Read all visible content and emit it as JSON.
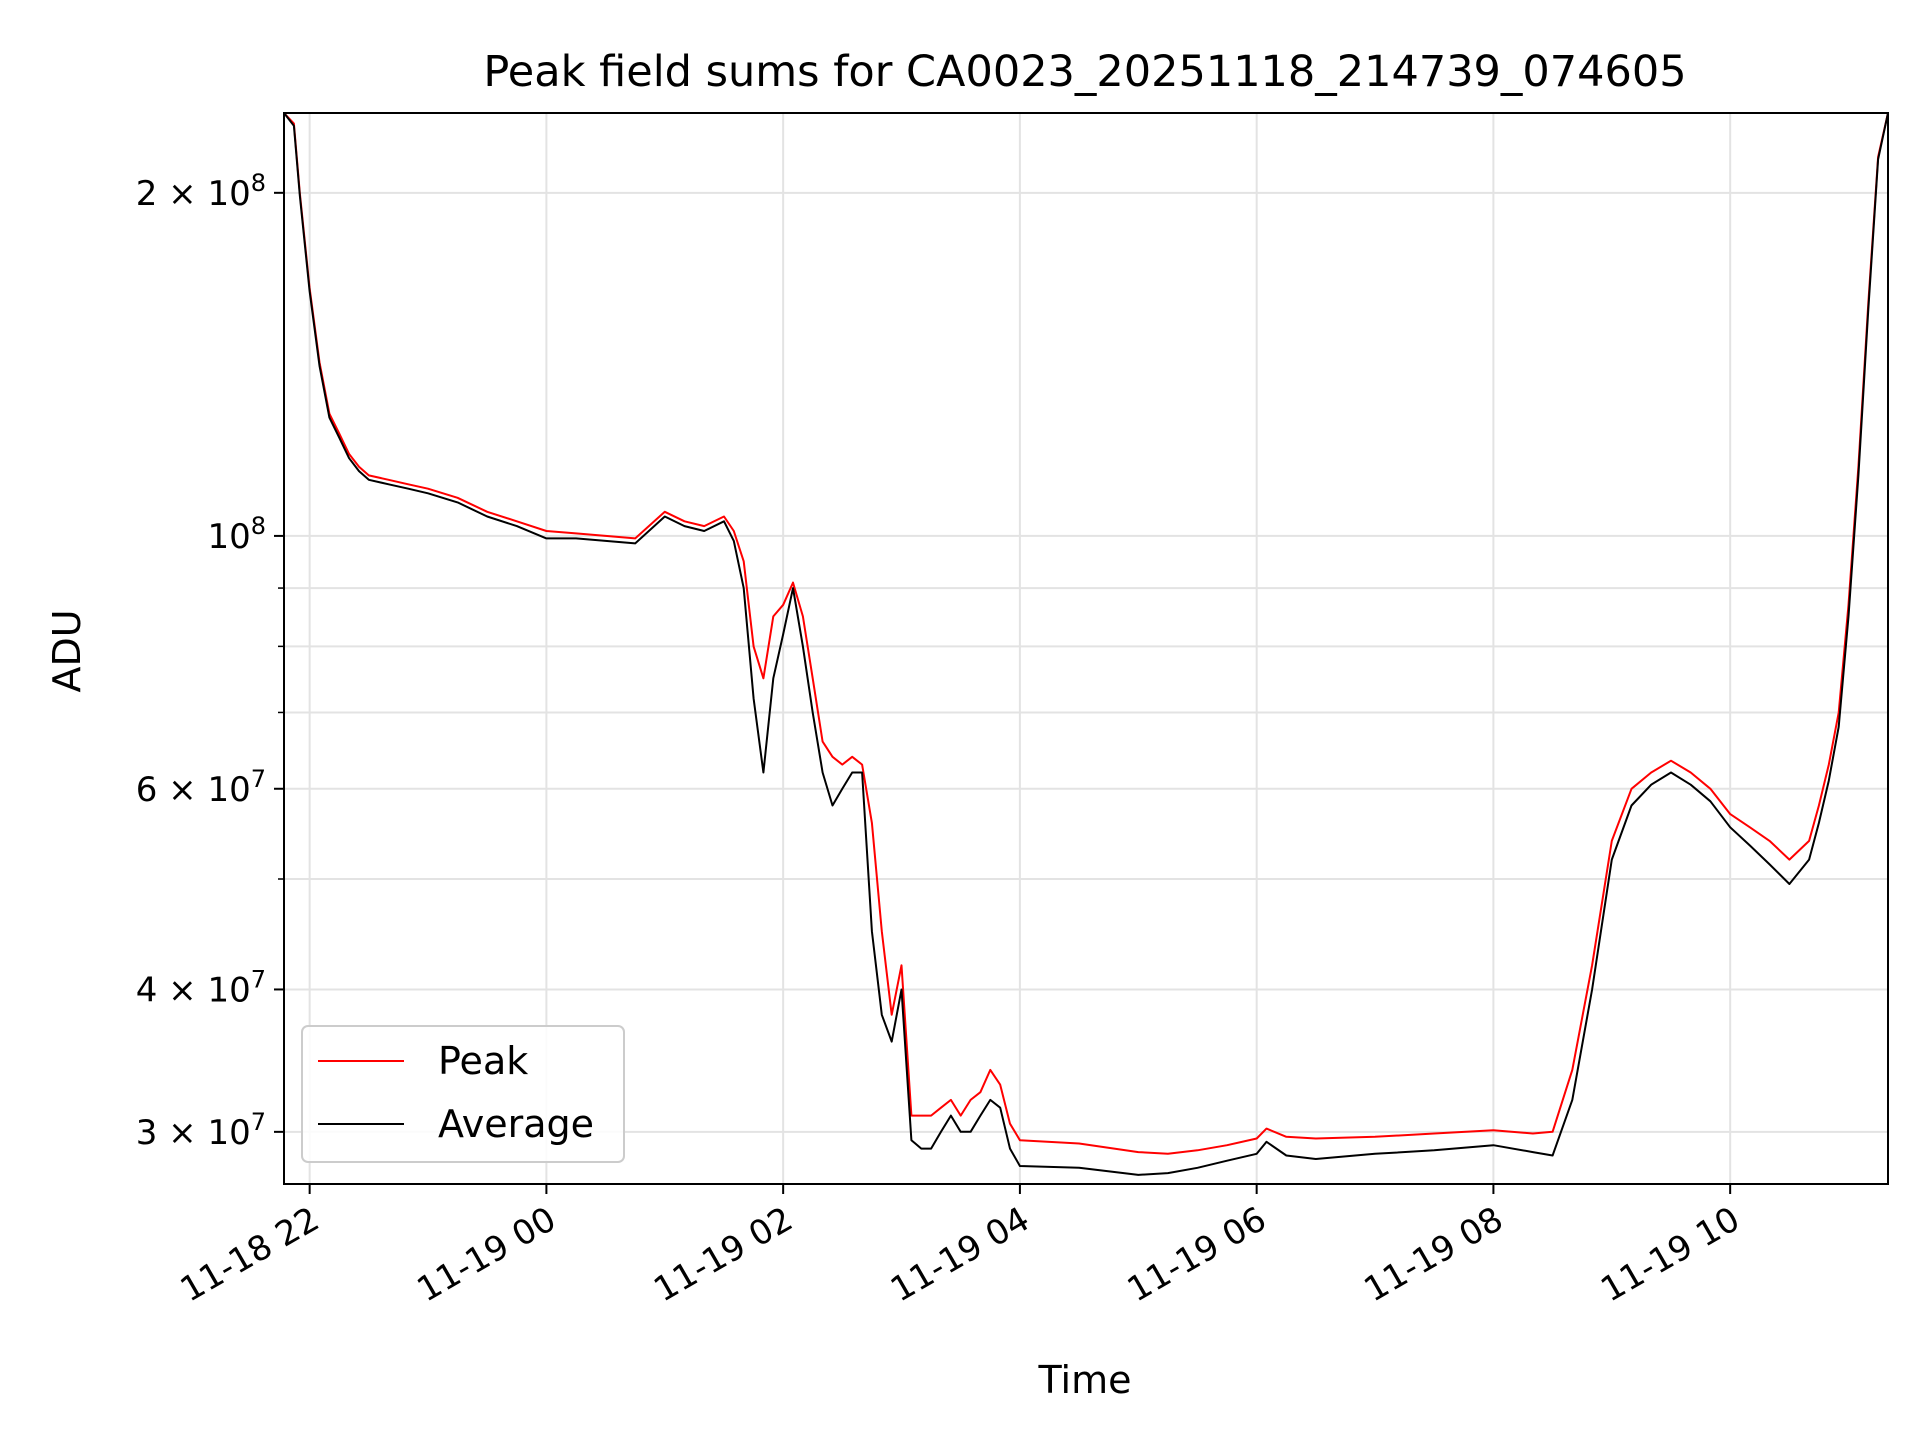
{
  "chart_data": {
    "type": "line",
    "title": "Peak field sums for CA0023_20251118_214739_074605",
    "xlabel": "Time",
    "ylabel": "ADU",
    "y_scale": "log",
    "ylim": [
      27000000,
      235000000
    ],
    "xlim": [
      "2025-11-18 21:47",
      "2025-11-19 11:20"
    ],
    "grid": true,
    "legend_position": "lower-left",
    "x_tick_labels": [
      "11-18 22",
      "11-19 00",
      "11-19 02",
      "11-19 04",
      "11-19 06",
      "11-19 08",
      "11-19 10"
    ],
    "x_ticks": [
      "2025-11-18 22:00",
      "2025-11-19 00:00",
      "2025-11-19 02:00",
      "2025-11-19 04:00",
      "2025-11-19 06:00",
      "2025-11-19 08:00",
      "2025-11-19 10:00"
    ],
    "y_ticks": [
      {
        "value": 30000000,
        "mantissa": "3",
        "exp": "7"
      },
      {
        "value": 40000000,
        "mantissa": "4",
        "exp": "7"
      },
      {
        "value": 60000000,
        "mantissa": "6",
        "exp": "7"
      },
      {
        "value": 100000000,
        "mantissa": "",
        "exp": "8"
      },
      {
        "value": 200000000,
        "mantissa": "2",
        "exp": "8"
      }
    ],
    "y_minor_ticks": [
      50000000,
      70000000,
      80000000,
      90000000
    ],
    "series": [
      {
        "name": "Peak",
        "color": "#ff0000",
        "x": [
          "2025-11-18 21:47",
          "2025-11-18 21:52",
          "2025-11-18 21:55",
          "2025-11-18 22:00",
          "2025-11-18 22:05",
          "2025-11-18 22:10",
          "2025-11-18 22:15",
          "2025-11-18 22:20",
          "2025-11-18 22:25",
          "2025-11-18 22:30",
          "2025-11-18 22:40",
          "2025-11-18 22:50",
          "2025-11-18 23:00",
          "2025-11-18 23:15",
          "2025-11-18 23:30",
          "2025-11-18 23:45",
          "2025-11-19 00:00",
          "2025-11-19 00:15",
          "2025-11-19 00:30",
          "2025-11-19 00:45",
          "2025-11-19 01:00",
          "2025-11-19 01:10",
          "2025-11-19 01:20",
          "2025-11-19 01:30",
          "2025-11-19 01:35",
          "2025-11-19 01:40",
          "2025-11-19 01:45",
          "2025-11-19 01:50",
          "2025-11-19 01:55",
          "2025-11-19 02:00",
          "2025-11-19 02:05",
          "2025-11-19 02:10",
          "2025-11-19 02:15",
          "2025-11-19 02:20",
          "2025-11-19 02:25",
          "2025-11-19 02:30",
          "2025-11-19 02:35",
          "2025-11-19 02:40",
          "2025-11-19 02:45",
          "2025-11-19 02:50",
          "2025-11-19 02:55",
          "2025-11-19 03:00",
          "2025-11-19 03:05",
          "2025-11-19 03:10",
          "2025-11-19 03:15",
          "2025-11-19 03:20",
          "2025-11-19 03:25",
          "2025-11-19 03:30",
          "2025-11-19 03:35",
          "2025-11-19 03:40",
          "2025-11-19 03:45",
          "2025-11-19 03:50",
          "2025-11-19 03:55",
          "2025-11-19 04:00",
          "2025-11-19 04:30",
          "2025-11-19 05:00",
          "2025-11-19 05:15",
          "2025-11-19 05:30",
          "2025-11-19 05:45",
          "2025-11-19 06:00",
          "2025-11-19 06:05",
          "2025-11-19 06:15",
          "2025-11-19 06:30",
          "2025-11-19 07:00",
          "2025-11-19 07:30",
          "2025-11-19 08:00",
          "2025-11-19 08:20",
          "2025-11-19 08:30",
          "2025-11-19 08:40",
          "2025-11-19 08:50",
          "2025-11-19 09:00",
          "2025-11-19 09:10",
          "2025-11-19 09:20",
          "2025-11-19 09:30",
          "2025-11-19 09:40",
          "2025-11-19 09:50",
          "2025-11-19 10:00",
          "2025-11-19 10:10",
          "2025-11-19 10:20",
          "2025-11-19 10:30",
          "2025-11-19 10:40",
          "2025-11-19 10:45",
          "2025-11-19 10:50",
          "2025-11-19 10:55",
          "2025-11-19 11:00",
          "2025-11-19 11:05",
          "2025-11-19 11:10",
          "2025-11-19 11:15",
          "2025-11-19 11:20"
        ],
        "y": [
          235000000,
          230000000,
          200000000,
          165000000,
          142000000,
          128000000,
          123000000,
          118000000,
          115000000,
          113000000,
          112000000,
          111000000,
          110000000,
          108000000,
          105000000,
          103000000,
          101000000,
          100500000,
          100000000,
          99500000,
          105000000,
          103000000,
          102000000,
          104000000,
          101000000,
          95000000,
          80000000,
          75000000,
          85000000,
          87000000,
          91000000,
          85000000,
          75000000,
          66000000,
          64000000,
          63000000,
          64000000,
          63000000,
          56000000,
          45000000,
          38000000,
          42000000,
          31000000,
          31000000,
          31000000,
          31500000,
          32000000,
          31000000,
          32000000,
          32500000,
          34000000,
          33000000,
          30500000,
          29500000,
          29300000,
          28800000,
          28700000,
          28900000,
          29200000,
          29600000,
          30200000,
          29700000,
          29600000,
          29700000,
          29900000,
          30100000,
          29900000,
          30000000,
          34000000,
          42000000,
          54000000,
          60000000,
          62000000,
          63500000,
          62000000,
          60000000,
          57000000,
          55500000,
          54000000,
          52000000,
          54000000,
          58000000,
          63000000,
          70000000,
          87000000,
          115000000,
          160000000,
          215000000,
          235000000
        ]
      },
      {
        "name": "Average",
        "color": "#000000",
        "x": [
          "2025-11-18 21:47",
          "2025-11-18 21:52",
          "2025-11-18 21:55",
          "2025-11-18 22:00",
          "2025-11-18 22:05",
          "2025-11-18 22:10",
          "2025-11-18 22:15",
          "2025-11-18 22:20",
          "2025-11-18 22:25",
          "2025-11-18 22:30",
          "2025-11-18 22:40",
          "2025-11-18 22:50",
          "2025-11-18 23:00",
          "2025-11-18 23:15",
          "2025-11-18 23:30",
          "2025-11-18 23:45",
          "2025-11-19 00:00",
          "2025-11-19 00:15",
          "2025-11-19 00:30",
          "2025-11-19 00:45",
          "2025-11-19 01:00",
          "2025-11-19 01:10",
          "2025-11-19 01:20",
          "2025-11-19 01:30",
          "2025-11-19 01:35",
          "2025-11-19 01:40",
          "2025-11-19 01:45",
          "2025-11-19 01:50",
          "2025-11-19 01:55",
          "2025-11-19 02:00",
          "2025-11-19 02:05",
          "2025-11-19 02:10",
          "2025-11-19 02:15",
          "2025-11-19 02:20",
          "2025-11-19 02:25",
          "2025-11-19 02:30",
          "2025-11-19 02:35",
          "2025-11-19 02:40",
          "2025-11-19 02:45",
          "2025-11-19 02:50",
          "2025-11-19 02:55",
          "2025-11-19 03:00",
          "2025-11-19 03:05",
          "2025-11-19 03:10",
          "2025-11-19 03:15",
          "2025-11-19 03:20",
          "2025-11-19 03:25",
          "2025-11-19 03:30",
          "2025-11-19 03:35",
          "2025-11-19 03:40",
          "2025-11-19 03:45",
          "2025-11-19 03:50",
          "2025-11-19 03:55",
          "2025-11-19 04:00",
          "2025-11-19 04:30",
          "2025-11-19 05:00",
          "2025-11-19 05:15",
          "2025-11-19 05:30",
          "2025-11-19 05:45",
          "2025-11-19 06:00",
          "2025-11-19 06:05",
          "2025-11-19 06:15",
          "2025-11-19 06:30",
          "2025-11-19 07:00",
          "2025-11-19 07:30",
          "2025-11-19 08:00",
          "2025-11-19 08:20",
          "2025-11-19 08:30",
          "2025-11-19 08:40",
          "2025-11-19 08:50",
          "2025-11-19 09:00",
          "2025-11-19 09:10",
          "2025-11-19 09:20",
          "2025-11-19 09:30",
          "2025-11-19 09:40",
          "2025-11-19 09:50",
          "2025-11-19 10:00",
          "2025-11-19 10:10",
          "2025-11-19 10:20",
          "2025-11-19 10:30",
          "2025-11-19 10:40",
          "2025-11-19 10:45",
          "2025-11-19 10:50",
          "2025-11-19 10:55",
          "2025-11-19 11:00",
          "2025-11-19 11:05",
          "2025-11-19 11:10",
          "2025-11-19 11:15",
          "2025-11-19 11:20"
        ],
        "y": [
          235000000,
          229000000,
          199000000,
          164000000,
          141000000,
          127000000,
          122000000,
          117000000,
          114000000,
          112000000,
          111000000,
          110000000,
          109000000,
          107000000,
          104000000,
          102000000,
          99500000,
          99500000,
          99000000,
          98500000,
          104000000,
          102000000,
          101000000,
          103000000,
          99000000,
          90000000,
          72000000,
          62000000,
          75000000,
          82000000,
          90000000,
          80000000,
          70000000,
          62000000,
          58000000,
          60000000,
          62000000,
          62000000,
          45000000,
          38000000,
          36000000,
          40000000,
          29500000,
          29000000,
          29000000,
          30000000,
          31000000,
          30000000,
          30000000,
          31000000,
          32000000,
          31500000,
          29000000,
          28000000,
          27900000,
          27500000,
          27600000,
          27900000,
          28300000,
          28700000,
          29400000,
          28600000,
          28400000,
          28700000,
          28900000,
          29200000,
          28800000,
          28600000,
          32000000,
          40000000,
          52000000,
          58000000,
          60500000,
          62000000,
          60500000,
          58500000,
          55500000,
          53500000,
          51500000,
          49500000,
          52000000,
          56000000,
          61000000,
          68000000,
          85000000,
          113000000,
          158000000,
          214000000,
          235000000
        ]
      }
    ]
  }
}
